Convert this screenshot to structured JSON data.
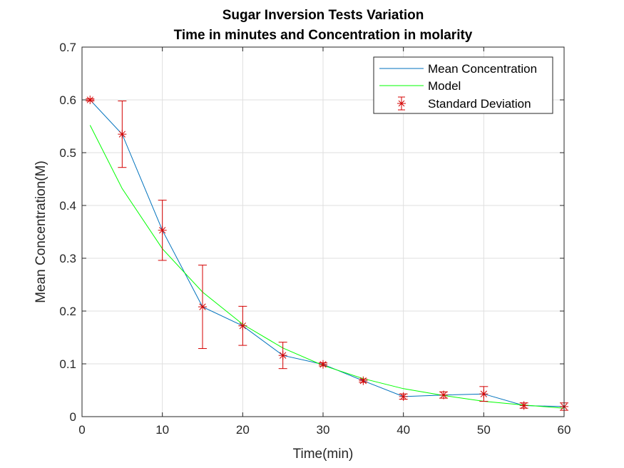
{
  "chart_data": {
    "type": "line",
    "title": "Sugar Inversion Tests Variation",
    "subtitle": "Time in minutes and Concentration in molarity",
    "xlabel": "Time(min)",
    "ylabel": "Mean Concentration(M)",
    "xlim": [
      0,
      60
    ],
    "ylim": [
      0,
      0.7
    ],
    "xticks": [
      0,
      10,
      20,
      30,
      40,
      50,
      60
    ],
    "yticks": [
      0,
      0.1,
      0.2,
      0.3,
      0.4,
      0.5,
      0.6,
      0.7
    ],
    "grid": true,
    "legend_position": "top-right",
    "legend": [
      "Mean Concentration",
      "Model",
      "Standard Deviation"
    ],
    "series": [
      {
        "name": "Mean Concentration",
        "color": "#0072bd",
        "x": [
          1,
          5,
          10,
          15,
          20,
          25,
          30,
          35,
          40,
          45,
          50,
          55,
          60
        ],
        "y": [
          0.6,
          0.535,
          0.353,
          0.208,
          0.172,
          0.116,
          0.099,
          0.068,
          0.038,
          0.041,
          0.043,
          0.021,
          0.019
        ]
      },
      {
        "name": "Model",
        "color": "#00ff00",
        "x": [
          1,
          5,
          10,
          15,
          20,
          25,
          30,
          35,
          40,
          45,
          50,
          55,
          60
        ],
        "y": [
          0.552,
          0.432,
          0.318,
          0.236,
          0.175,
          0.13,
          0.097,
          0.072,
          0.053,
          0.04,
          0.029,
          0.022,
          0.016
        ]
      }
    ],
    "error_bars": {
      "name": "Standard Deviation",
      "color": "#d40000",
      "x": [
        1,
        5,
        10,
        15,
        20,
        25,
        30,
        35,
        40,
        45,
        50,
        55,
        60
      ],
      "y": [
        0.6,
        0.535,
        0.353,
        0.208,
        0.172,
        0.116,
        0.099,
        0.068,
        0.038,
        0.041,
        0.043,
        0.021,
        0.019
      ],
      "err": [
        0.002,
        0.063,
        0.057,
        0.079,
        0.037,
        0.025,
        0.003,
        0.003,
        0.005,
        0.006,
        0.014,
        0.005,
        0.007
      ]
    }
  }
}
